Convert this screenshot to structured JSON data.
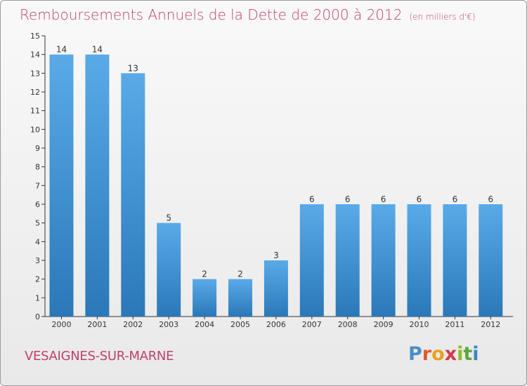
{
  "header": {
    "title": "Remboursements Annuels de la Dette de 2000 à 2012",
    "unit": "(en milliers d'€)"
  },
  "footer": {
    "town": "VESAIGNES-SUR-MARNE",
    "brand_logo": "Proxiti"
  },
  "colors": {
    "title": "#c0406e",
    "bar_top": "#5aaae8",
    "bar_bottom": "#2a78b8"
  },
  "chart_data": {
    "type": "bar",
    "title": "Remboursements Annuels de la Dette de 2000 à 2012",
    "xlabel": "",
    "ylabel": "",
    "categories": [
      "2000",
      "2001",
      "2002",
      "2003",
      "2004",
      "2005",
      "2006",
      "2007",
      "2008",
      "2009",
      "2010",
      "2011",
      "2012"
    ],
    "values": [
      14,
      14,
      13,
      5,
      2,
      2,
      3,
      6,
      6,
      6,
      6,
      6,
      6
    ],
    "data_labels": [
      "14",
      "14",
      "13",
      "5",
      "2",
      "2",
      "3",
      "6",
      "6",
      "6",
      "6",
      "6",
      "6"
    ],
    "ylim": [
      0,
      15
    ],
    "yticks": [
      "0",
      "1",
      "2",
      "3",
      "4",
      "5",
      "6",
      "7",
      "8",
      "9",
      "10",
      "11",
      "12",
      "13",
      "14",
      "15"
    ],
    "grid": false,
    "legend": "none"
  }
}
